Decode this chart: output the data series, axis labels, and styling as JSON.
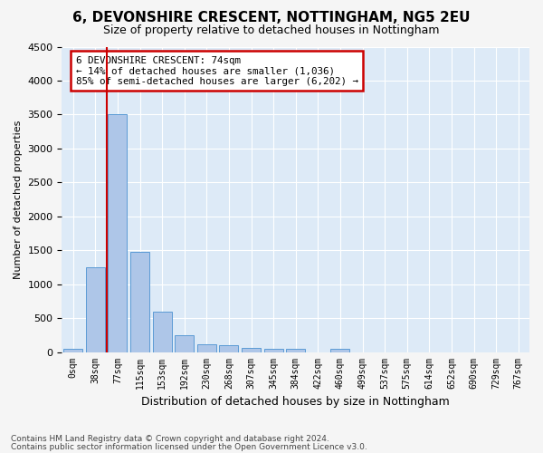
{
  "title": "6, DEVONSHIRE CRESCENT, NOTTINGHAM, NG5 2EU",
  "subtitle": "Size of property relative to detached houses in Nottingham",
  "xlabel": "Distribution of detached houses by size in Nottingham",
  "ylabel": "Number of detached properties",
  "bin_labels": [
    "0sqm",
    "38sqm",
    "77sqm",
    "115sqm",
    "153sqm",
    "192sqm",
    "230sqm",
    "268sqm",
    "307sqm",
    "345sqm",
    "384sqm",
    "422sqm",
    "460sqm",
    "499sqm",
    "537sqm",
    "575sqm",
    "614sqm",
    "652sqm",
    "690sqm",
    "729sqm",
    "767sqm"
  ],
  "bar_values": [
    50,
    1250,
    3500,
    1480,
    600,
    250,
    120,
    100,
    60,
    50,
    50,
    0,
    50,
    0,
    0,
    0,
    0,
    0,
    0,
    0,
    0
  ],
  "bar_color": "#aec6e8",
  "bar_edge_color": "#5b9bd5",
  "annotation_title": "6 DEVONSHIRE CRESCENT: 74sqm",
  "annotation_line1": "← 14% of detached houses are smaller (1,036)",
  "annotation_line2": "85% of semi-detached houses are larger (6,202) →",
  "annotation_box_color": "#ffffff",
  "annotation_border_color": "#cc0000",
  "red_line_x": 1.5,
  "ylim": [
    0,
    4500
  ],
  "yticks": [
    0,
    500,
    1000,
    1500,
    2000,
    2500,
    3000,
    3500,
    4000,
    4500
  ],
  "footnote1": "Contains HM Land Registry data © Crown copyright and database right 2024.",
  "footnote2": "Contains public sector information licensed under the Open Government Licence v3.0.",
  "plot_bg_color": "#ddeaf7",
  "grid_color": "#ffffff"
}
